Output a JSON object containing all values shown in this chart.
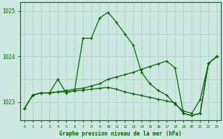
{
  "background_color": "#cce8e0",
  "line_color": "#006600",
  "grid_color_v": "#aaccbb",
  "grid_color_h": "#aaccbb",
  "title": "Graphe pression niveau de la mer (hPa)",
  "ylim": [
    1022.6,
    1025.2
  ],
  "xlim": [
    -0.5,
    23.5
  ],
  "yticks": [
    1023,
    1024,
    1025
  ],
  "xticks": [
    0,
    1,
    2,
    3,
    4,
    5,
    6,
    7,
    8,
    9,
    10,
    11,
    12,
    13,
    14,
    15,
    16,
    17,
    18,
    19,
    20,
    21,
    22,
    23
  ],
  "series1_x": [
    0,
    1,
    2,
    3,
    4,
    5,
    6,
    7,
    8,
    9,
    10,
    11,
    12,
    13,
    14,
    15,
    16,
    17,
    18,
    19,
    20,
    21,
    22,
    23
  ],
  "series1_y": [
    1022.85,
    1023.15,
    1023.2,
    1023.2,
    1023.5,
    1023.2,
    1023.25,
    1024.4,
    1024.4,
    1024.85,
    1024.97,
    1024.75,
    1024.5,
    1024.25,
    1023.65,
    1023.4,
    1023.25,
    1023.15,
    1022.95,
    1022.8,
    1022.75,
    1023.05,
    1023.85,
    1024.0
  ],
  "series2_x": [
    0,
    1,
    2,
    3,
    4,
    5,
    6,
    7,
    8,
    9,
    10,
    11,
    12,
    13,
    14,
    15,
    16,
    17,
    18,
    19,
    20,
    21,
    22,
    23
  ],
  "series2_y": [
    1022.85,
    1023.15,
    1023.2,
    1023.2,
    1023.22,
    1023.25,
    1023.28,
    1023.3,
    1023.35,
    1023.4,
    1023.5,
    1023.55,
    1023.6,
    1023.65,
    1023.72,
    1023.78,
    1023.84,
    1023.9,
    1023.75,
    1022.75,
    1022.7,
    1022.75,
    1023.85,
    1024.0
  ],
  "series3_x": [
    0,
    1,
    2,
    3,
    4,
    5,
    6,
    7,
    8,
    9,
    10,
    11,
    12,
    13,
    14,
    15,
    16,
    17,
    18,
    19,
    20,
    21,
    22,
    23
  ],
  "series3_y": [
    1022.85,
    1023.15,
    1023.2,
    1023.2,
    1023.22,
    1023.22,
    1023.24,
    1023.26,
    1023.28,
    1023.3,
    1023.32,
    1023.28,
    1023.22,
    1023.18,
    1023.14,
    1023.1,
    1023.06,
    1023.02,
    1022.98,
    1022.75,
    1022.7,
    1022.75,
    1023.85,
    1024.0
  ]
}
